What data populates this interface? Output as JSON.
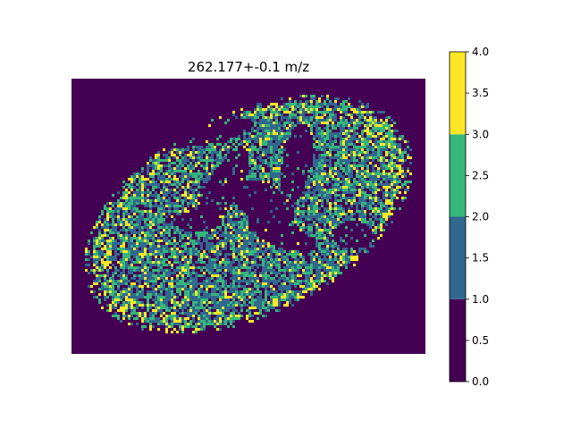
{
  "chart_data": {
    "type": "heatmap",
    "title": "262.177+-0.1 m/z",
    "axes_visible": false,
    "grid": false,
    "colormap": "viridis",
    "colorbar": {
      "position": "right",
      "range": [
        0,
        4
      ],
      "levels": [
        {
          "min": 0,
          "max": 1,
          "color": "#440154"
        },
        {
          "min": 1,
          "max": 2,
          "color": "#31688e"
        },
        {
          "min": 2,
          "max": 3,
          "color": "#35b779"
        },
        {
          "min": 3,
          "max": 4,
          "color": "#fde725"
        }
      ],
      "tick_values": [
        0.0,
        0.5,
        1.0,
        1.5,
        2.0,
        2.5,
        3.0,
        3.5,
        4.0
      ],
      "tick_labels": [
        "0.0",
        "0.5",
        "1.0",
        "1.5",
        "2.0",
        "2.5",
        "3.0",
        "3.5",
        "4.0"
      ]
    },
    "description_of_image": "ion intensity image of an oval tissue section; background value 0, tissue pixels mostly 1-2 with scattered 3-4 hot spots concentrated along the outer rim"
  },
  "colors": {
    "background": "#440154",
    "level1": "#31688e",
    "level2": "#35b779",
    "level3": "#fde725"
  }
}
